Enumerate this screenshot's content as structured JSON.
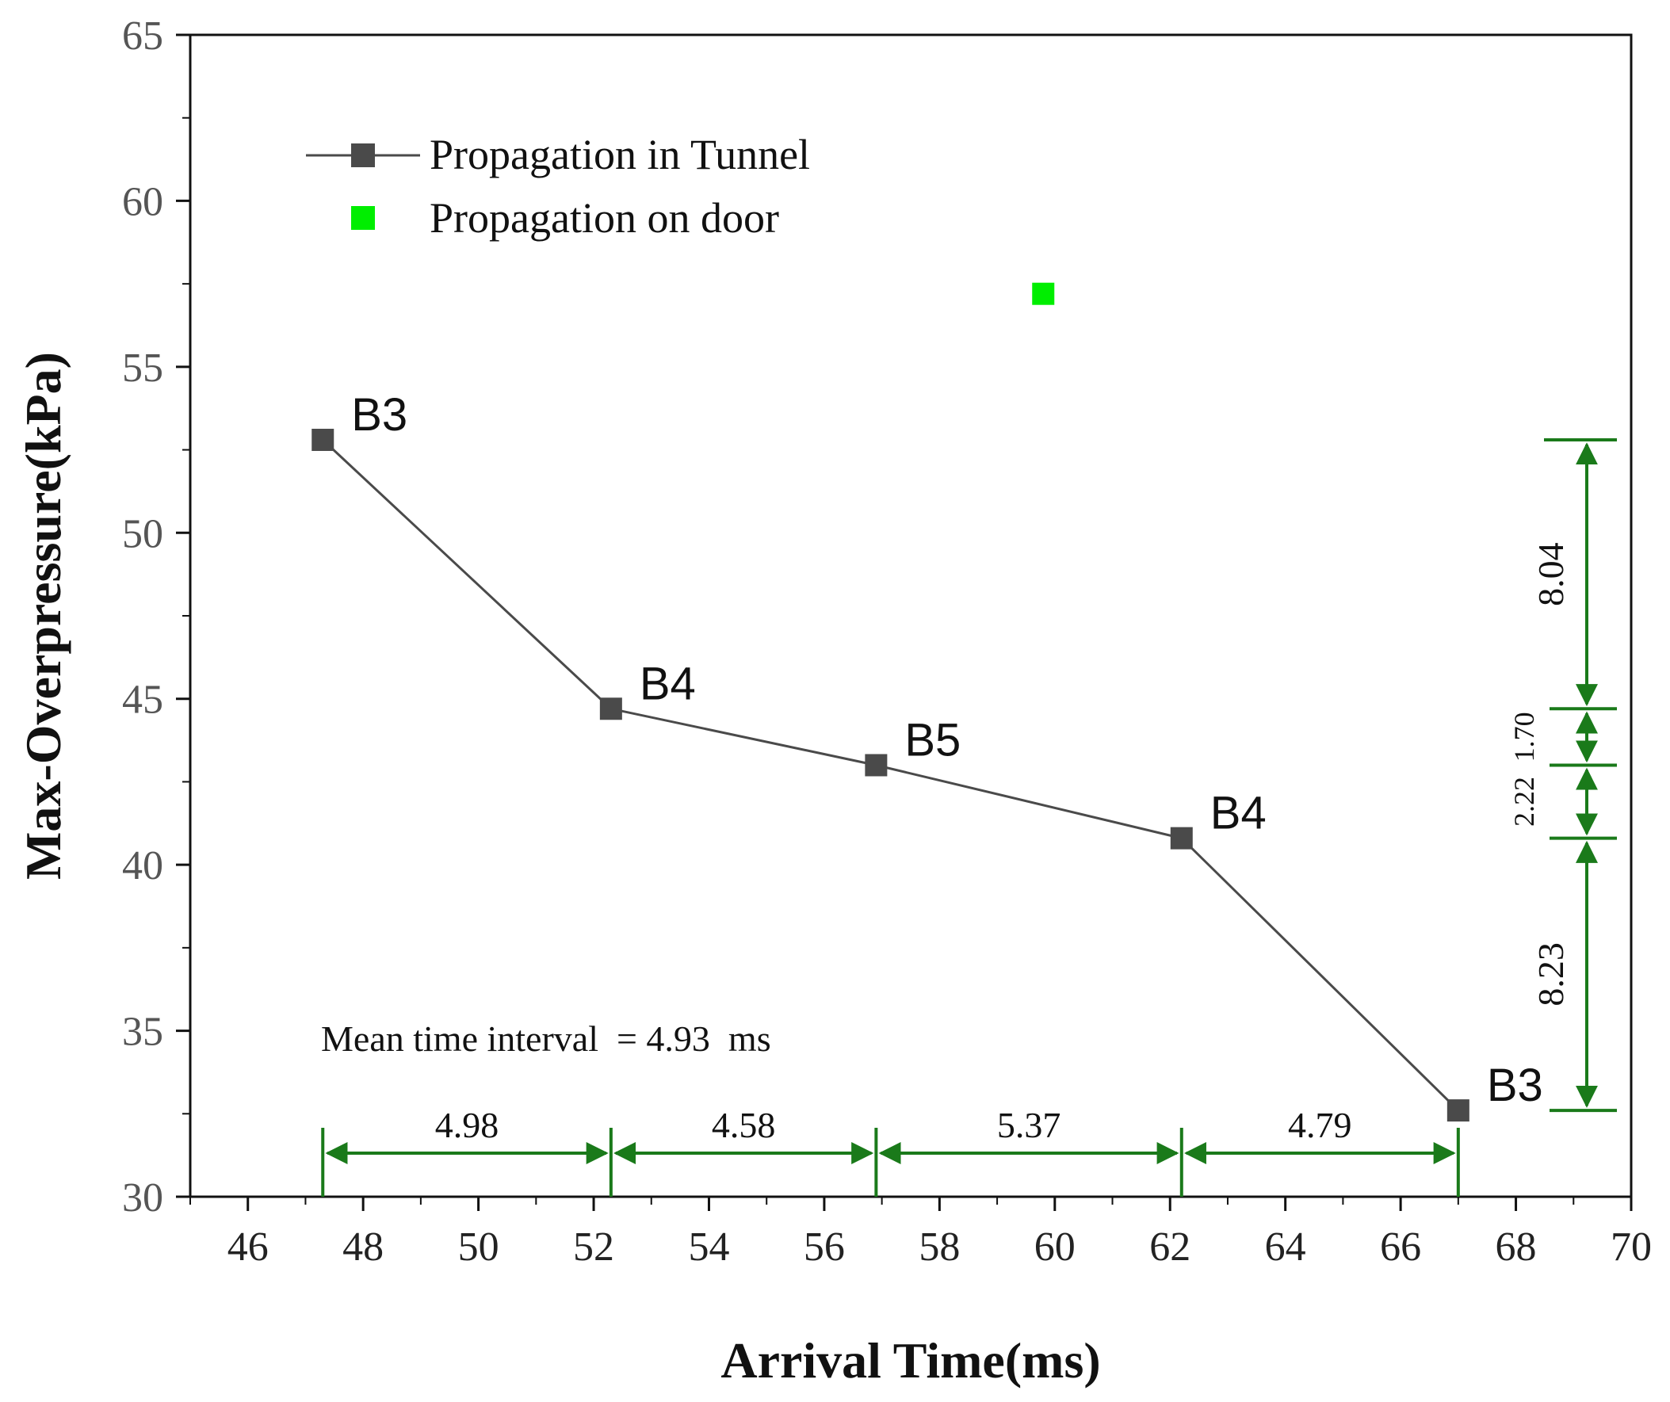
{
  "chart_data": {
    "type": "line",
    "xlabel": "Arrival Time(ms)",
    "ylabel": "Max-Overpressure(kPa)",
    "xlim": [
      45,
      70
    ],
    "ylim": [
      30,
      65
    ],
    "x_ticks": [
      "46",
      "48",
      "50",
      "52",
      "54",
      "56",
      "58",
      "60",
      "62",
      "64",
      "66",
      "68",
      "70"
    ],
    "y_ticks": [
      "30",
      "35",
      "40",
      "45",
      "50",
      "55",
      "60",
      "65"
    ],
    "series": [
      {
        "name": "Propagation in Tunnel",
        "color": "#4a4a4a",
        "marker": "square",
        "line": true,
        "points": [
          {
            "x": 47.3,
            "y": 52.8,
            "label": "B3"
          },
          {
            "x": 52.3,
            "y": 44.7,
            "label": "B4"
          },
          {
            "x": 56.9,
            "y": 43.0,
            "label": "B5"
          },
          {
            "x": 62.2,
            "y": 40.8,
            "label": "B4"
          },
          {
            "x": 67.0,
            "y": 32.6,
            "label": "B3"
          }
        ]
      },
      {
        "name": "Propagation on door",
        "color": "#00ee00",
        "marker": "square",
        "line": false,
        "points": [
          {
            "x": 59.8,
            "y": 57.2
          }
        ]
      }
    ],
    "annotations": {
      "mean_text": "Mean time interval  = 4.93  ms",
      "annotation_color": "#1a7a1a",
      "time_intervals": [
        {
          "from": 47.3,
          "to": 52.3,
          "label": "4.98"
        },
        {
          "from": 52.3,
          "to": 56.9,
          "label": "4.58"
        },
        {
          "from": 56.9,
          "to": 62.2,
          "label": "5.37"
        },
        {
          "from": 62.2,
          "to": 67.0,
          "label": "4.79"
        }
      ],
      "pressure_intervals": [
        {
          "from": 52.8,
          "to": 44.7,
          "label": "8.04"
        },
        {
          "from": 44.7,
          "to": 43.0,
          "label": "1.70"
        },
        {
          "from": 43.0,
          "to": 40.8,
          "label": "2.22"
        },
        {
          "from": 40.8,
          "to": 32.6,
          "label": "8.23"
        }
      ]
    },
    "legend": "top-left"
  }
}
